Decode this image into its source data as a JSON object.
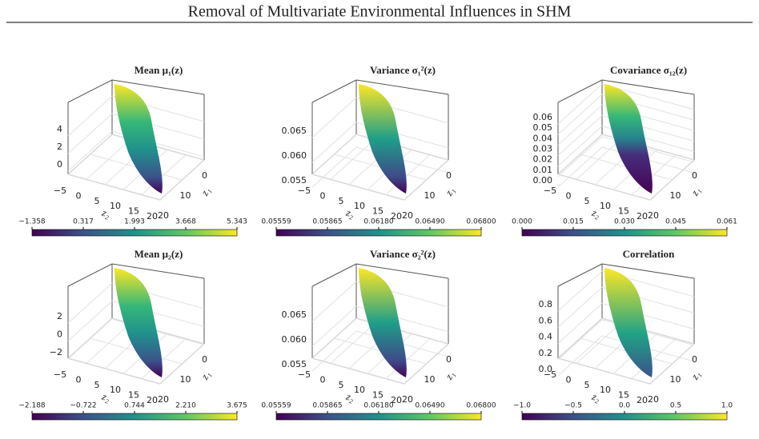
{
  "header": {
    "title": "Removal of Multivariate Environmental Influences in SHM"
  },
  "axes": {
    "x_label": "z₂",
    "x_ticks": [
      "−5",
      "0",
      "5",
      "10",
      "15",
      "20"
    ],
    "y_label": "z₁",
    "y_ticks": [
      "0",
      "10",
      "20"
    ]
  },
  "panels": [
    {
      "title": "Mean μ₁(z)",
      "zticks": [
        "4",
        "2",
        "0"
      ],
      "colorbar_ticks": [
        "−1.358",
        "0.317",
        "1.993",
        "3.668",
        "5.343"
      ]
    },
    {
      "title": "Variance σ₁²(z)",
      "zticks": [
        "0.065",
        "0.060",
        "0.055"
      ],
      "colorbar_ticks": [
        "0.05559",
        "0.05865",
        "0.06180",
        "0.06490",
        "0.06800"
      ]
    },
    {
      "title": "Covariance σ₁₂(z)",
      "zticks": [
        "0.06",
        "0.05",
        "0.04",
        "0.03",
        "0.02",
        "0.01",
        "0.00"
      ],
      "colorbar_ticks": [
        "0.000",
        "0.015",
        "0.030",
        "0.045",
        "0.061"
      ]
    },
    {
      "title": "Mean μ₂(z)",
      "zticks": [
        "2",
        "0",
        "−2"
      ],
      "colorbar_ticks": [
        "−2.188",
        "−0.722",
        "0.744",
        "2.210",
        "3.675"
      ]
    },
    {
      "title": "Variance σ₂²(z)",
      "zticks": [
        "0.065",
        "0.060",
        "0.055"
      ],
      "colorbar_ticks": [
        "0.05559",
        "0.05865",
        "0.06180",
        "0.06490",
        "0.06800"
      ]
    },
    {
      "title": "Correlation",
      "zticks": [
        "0.8",
        "0.6",
        "0.4",
        "0.2",
        "0.0"
      ],
      "colorbar_ticks": [
        "−1.0",
        "−0.5",
        "0.0",
        "0.5",
        "1.0"
      ]
    }
  ]
}
